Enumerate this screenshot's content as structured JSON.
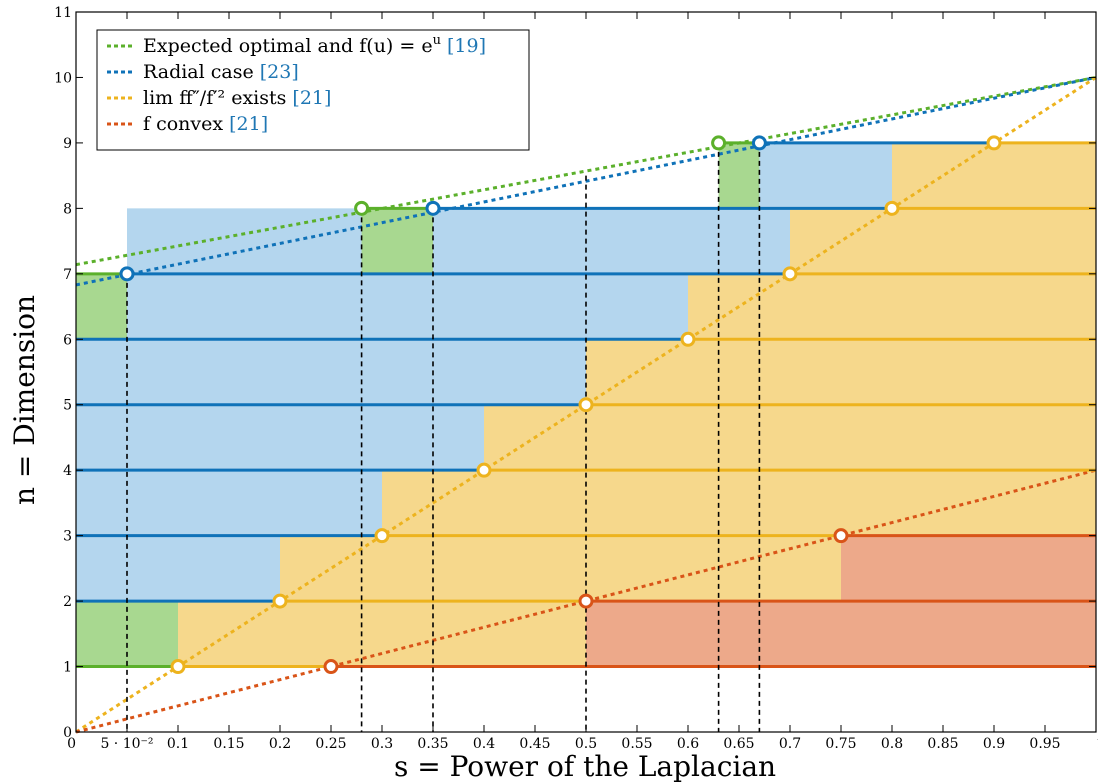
{
  "chart_data": {
    "type": "line",
    "title": "",
    "xlabel": "s = Power of the Laplacian",
    "ylabel": "n = Dimension",
    "xlim": [
      0,
      1
    ],
    "ylim": [
      0,
      11
    ],
    "x_ticks": [
      {
        "value": 0,
        "label": "0"
      },
      {
        "value": 0.05,
        "label": "5 · 10⁻²"
      },
      {
        "value": 0.1,
        "label": "0.1"
      },
      {
        "value": 0.15,
        "label": "0.15"
      },
      {
        "value": 0.2,
        "label": "0.2"
      },
      {
        "value": 0.25,
        "label": "0.25"
      },
      {
        "value": 0.3,
        "label": "0.3"
      },
      {
        "value": 0.35,
        "label": "0.35"
      },
      {
        "value": 0.4,
        "label": "0.4"
      },
      {
        "value": 0.45,
        "label": "0.45"
      },
      {
        "value": 0.5,
        "label": "0.5"
      },
      {
        "value": 0.55,
        "label": "0.55"
      },
      {
        "value": 0.6,
        "label": "0.6"
      },
      {
        "value": 0.65,
        "label": "0.65"
      },
      {
        "value": 0.7,
        "label": "0.7"
      },
      {
        "value": 0.75,
        "label": "0.75"
      },
      {
        "value": 0.8,
        "label": "0.8"
      },
      {
        "value": 0.85,
        "label": "0.85"
      },
      {
        "value": 0.9,
        "label": "0.9"
      },
      {
        "value": 0.95,
        "label": "0.95"
      },
      {
        "value": 1,
        "label": "1"
      }
    ],
    "y_ticks": [
      0,
      1,
      2,
      3,
      4,
      5,
      6,
      7,
      8,
      9,
      10,
      11
    ],
    "legend": {
      "placement": "top-left",
      "entries": [
        {
          "key": "green",
          "text": "Expected optimal and f(u) = e",
          "sup": "u",
          "cite": "[19]"
        },
        {
          "key": "blue",
          "text": "Radial case",
          "sup": "",
          "cite": "[23]"
        },
        {
          "key": "yellow",
          "text": "lim ff″/f′² exists",
          "sup": "",
          "cite": "[21]"
        },
        {
          "key": "red",
          "text": "f convex",
          "sup": "",
          "cite": "[21]"
        }
      ]
    },
    "colors": {
      "green": "#5bb02b",
      "blue": "#0f72b8",
      "yellow": "#edb31e",
      "red": "#d95418",
      "green_fill": "#a8d890",
      "blue_fill": "#b4d6ee",
      "yellow_fill": "#f6d88c",
      "red_fill": "#eda98a",
      "guide": "#000000"
    },
    "dotted_lines": [
      {
        "key": "green",
        "from": [
          0,
          7.14
        ],
        "to": [
          1,
          10
        ]
      },
      {
        "key": "blue",
        "from": [
          0,
          6.83
        ],
        "to": [
          1,
          10
        ]
      },
      {
        "key": "yellow",
        "from": [
          0,
          0
        ],
        "to": [
          1,
          10
        ]
      },
      {
        "key": "red",
        "from": [
          0,
          0
        ],
        "to": [
          1,
          4
        ]
      }
    ],
    "regions": [
      {
        "key": "green_fill",
        "x": [
          0,
          0.2
        ],
        "y": [
          1,
          2
        ]
      },
      {
        "key": "blue_fill",
        "x": [
          0,
          0.2
        ],
        "y": [
          2,
          3
        ]
      },
      {
        "key": "blue_fill",
        "x": [
          0,
          0.3
        ],
        "y": [
          3,
          4
        ]
      },
      {
        "key": "blue_fill",
        "x": [
          0,
          0.4
        ],
        "y": [
          4,
          5
        ]
      },
      {
        "key": "blue_fill",
        "x": [
          0,
          0.5
        ],
        "y": [
          5,
          6
        ]
      },
      {
        "key": "blue_fill",
        "x": [
          0,
          0.6
        ],
        "y": [
          6,
          7
        ]
      },
      {
        "key": "green_fill",
        "x": [
          0,
          0.05
        ],
        "y": [
          6,
          7
        ]
      },
      {
        "key": "blue_fill",
        "x": [
          0.05,
          0.7
        ],
        "y": [
          6,
          7
        ]
      },
      {
        "key": "blue_fill",
        "x": [
          0.05,
          0.8
        ],
        "y": [
          7,
          8
        ]
      },
      {
        "key": "green_fill",
        "x": [
          0.28,
          0.35
        ],
        "y": [
          7,
          8
        ]
      },
      {
        "key": "blue_fill",
        "x": [
          0.35,
          0.8
        ],
        "y": [
          7,
          8
        ]
      },
      {
        "key": "green_fill",
        "x": [
          0.63,
          0.67
        ],
        "y": [
          8,
          9
        ]
      },
      {
        "key": "blue_fill",
        "x": [
          0.67,
          0.9
        ],
        "y": [
          8,
          9
        ]
      },
      {
        "key": "yellow_fill",
        "x": [
          0.1,
          0.5
        ],
        "y": [
          1,
          2
        ]
      },
      {
        "key": "yellow_fill",
        "x": [
          0.2,
          1
        ],
        "y": [
          2,
          3
        ]
      },
      {
        "key": "yellow_fill",
        "x": [
          0.3,
          1
        ],
        "y": [
          3,
          4
        ]
      },
      {
        "key": "yellow_fill",
        "x": [
          0.4,
          1
        ],
        "y": [
          4,
          5
        ]
      },
      {
        "key": "yellow_fill",
        "x": [
          0.5,
          1
        ],
        "y": [
          5,
          6
        ]
      },
      {
        "key": "yellow_fill",
        "x": [
          0.6,
          1
        ],
        "y": [
          6,
          7
        ]
      },
      {
        "key": "yellow_fill",
        "x": [
          0.7,
          1
        ],
        "y": [
          7,
          8
        ]
      },
      {
        "key": "yellow_fill",
        "x": [
          0.8,
          1
        ],
        "y": [
          8,
          9
        ]
      },
      {
        "key": "yellow_fill",
        "x": [
          0.9,
          1
        ],
        "y": [
          8,
          9
        ]
      },
      {
        "key": "red_fill",
        "x": [
          0.5,
          1
        ],
        "y": [
          1,
          2
        ]
      },
      {
        "key": "red_fill",
        "x": [
          0.75,
          1
        ],
        "y": [
          2,
          3
        ]
      }
    ],
    "levels": [
      {
        "y": 1,
        "segments": [
          {
            "key": "green",
            "x": [
              0,
              0.1
            ]
          },
          {
            "key": "yellow",
            "x": [
              0.1,
              0.25
            ]
          },
          {
            "key": "red",
            "x": [
              0.25,
              1
            ]
          }
        ]
      },
      {
        "y": 2,
        "segments": [
          {
            "key": "blue",
            "x": [
              0,
              0.2
            ]
          },
          {
            "key": "yellow",
            "x": [
              0.2,
              0.5
            ]
          },
          {
            "key": "red",
            "x": [
              0.5,
              1
            ]
          }
        ]
      },
      {
        "y": 3,
        "segments": [
          {
            "key": "blue",
            "x": [
              0,
              0.3
            ]
          },
          {
            "key": "yellow",
            "x": [
              0.3,
              0.75
            ]
          },
          {
            "key": "red",
            "x": [
              0.75,
              1
            ]
          }
        ]
      },
      {
        "y": 4,
        "segments": [
          {
            "key": "blue",
            "x": [
              0,
              0.4
            ]
          },
          {
            "key": "yellow",
            "x": [
              0.4,
              1
            ]
          }
        ]
      },
      {
        "y": 5,
        "segments": [
          {
            "key": "blue",
            "x": [
              0,
              0.5
            ]
          },
          {
            "key": "yellow",
            "x": [
              0.5,
              1
            ]
          }
        ]
      },
      {
        "y": 6,
        "segments": [
          {
            "key": "blue",
            "x": [
              0,
              0.6
            ]
          },
          {
            "key": "yellow",
            "x": [
              0.6,
              1
            ]
          }
        ]
      },
      {
        "y": 7,
        "segments": [
          {
            "key": "green",
            "x": [
              0,
              0.05
            ]
          },
          {
            "key": "blue",
            "x": [
              0.05,
              0.7
            ]
          },
          {
            "key": "yellow",
            "x": [
              0.7,
              1
            ]
          }
        ]
      },
      {
        "y": 8,
        "segments": [
          {
            "key": "green",
            "x": [
              0.28,
              0.35
            ]
          },
          {
            "key": "blue",
            "x": [
              0.35,
              0.8
            ]
          },
          {
            "key": "yellow",
            "x": [
              0.8,
              1
            ]
          }
        ]
      },
      {
        "y": 9,
        "segments": [
          {
            "key": "green",
            "x": [
              0.63,
              0.67
            ]
          },
          {
            "key": "blue",
            "x": [
              0.67,
              0.9
            ]
          },
          {
            "key": "yellow",
            "x": [
              0.9,
              1
            ]
          }
        ]
      }
    ],
    "vertical_guides": [
      {
        "x": 0.05,
        "y_top": 7
      },
      {
        "x": 0.28,
        "y_top": 8
      },
      {
        "x": 0.35,
        "y_top": 8
      },
      {
        "x": 0.5,
        "y_top": 8.5
      },
      {
        "x": 0.63,
        "y_top": 9
      },
      {
        "x": 0.67,
        "y_top": 9
      }
    ],
    "points": [
      {
        "key": "green",
        "x": 0.28,
        "y": 8
      },
      {
        "key": "green",
        "x": 0.63,
        "y": 9
      },
      {
        "key": "blue",
        "x": 0.05,
        "y": 7
      },
      {
        "key": "blue",
        "x": 0.35,
        "y": 8
      },
      {
        "key": "blue",
        "x": 0.67,
        "y": 9
      },
      {
        "key": "yellow",
        "x": 0.1,
        "y": 1
      },
      {
        "key": "yellow",
        "x": 0.2,
        "y": 2
      },
      {
        "key": "yellow",
        "x": 0.3,
        "y": 3
      },
      {
        "key": "yellow",
        "x": 0.4,
        "y": 4
      },
      {
        "key": "yellow",
        "x": 0.5,
        "y": 5
      },
      {
        "key": "yellow",
        "x": 0.6,
        "y": 6
      },
      {
        "key": "yellow",
        "x": 0.7,
        "y": 7
      },
      {
        "key": "yellow",
        "x": 0.8,
        "y": 8
      },
      {
        "key": "yellow",
        "x": 0.9,
        "y": 9
      },
      {
        "key": "red",
        "x": 0.25,
        "y": 1
      },
      {
        "key": "red",
        "x": 0.5,
        "y": 2
      },
      {
        "key": "red",
        "x": 0.75,
        "y": 3
      }
    ]
  }
}
